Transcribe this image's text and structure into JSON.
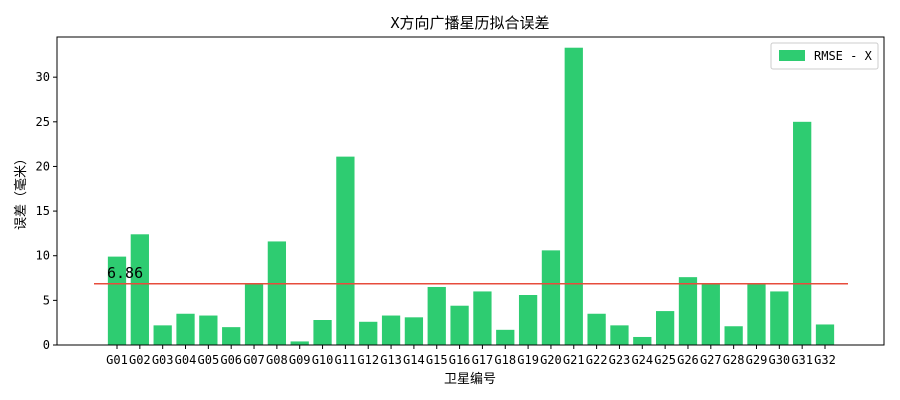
{
  "chart_data": {
    "type": "bar",
    "title": "X方向广播星历拟合误差",
    "xlabel": "卫星编号",
    "ylabel": "误差（毫米）",
    "categories": [
      "G01",
      "G02",
      "G03",
      "G04",
      "G05",
      "G06",
      "G07",
      "G08",
      "G09",
      "G10",
      "G11",
      "G12",
      "G13",
      "G14",
      "G15",
      "G16",
      "G17",
      "G18",
      "G19",
      "G20",
      "G21",
      "G22",
      "G23",
      "G24",
      "G25",
      "G26",
      "G27",
      "G28",
      "G29",
      "G30",
      "G31",
      "G32"
    ],
    "series": [
      {
        "name": "RMSE - X",
        "color": "#2ecc71",
        "values": [
          9.9,
          12.4,
          2.2,
          3.5,
          3.3,
          2.0,
          6.9,
          11.6,
          0.4,
          2.8,
          21.1,
          2.6,
          3.3,
          3.1,
          6.5,
          4.4,
          6.0,
          1.7,
          5.6,
          10.6,
          33.3,
          3.5,
          2.2,
          0.9,
          3.8,
          7.6,
          6.9,
          2.1,
          6.9,
          6.0,
          25.0,
          2.3
        ]
      }
    ],
    "mean_line": {
      "value": 6.86,
      "label": "6.86",
      "color": "#e74c3c"
    },
    "ylim": [
      0,
      34.5
    ],
    "yticks": [
      0,
      5,
      10,
      15,
      20,
      25,
      30
    ],
    "legend_position": "top-right",
    "grid": false
  }
}
